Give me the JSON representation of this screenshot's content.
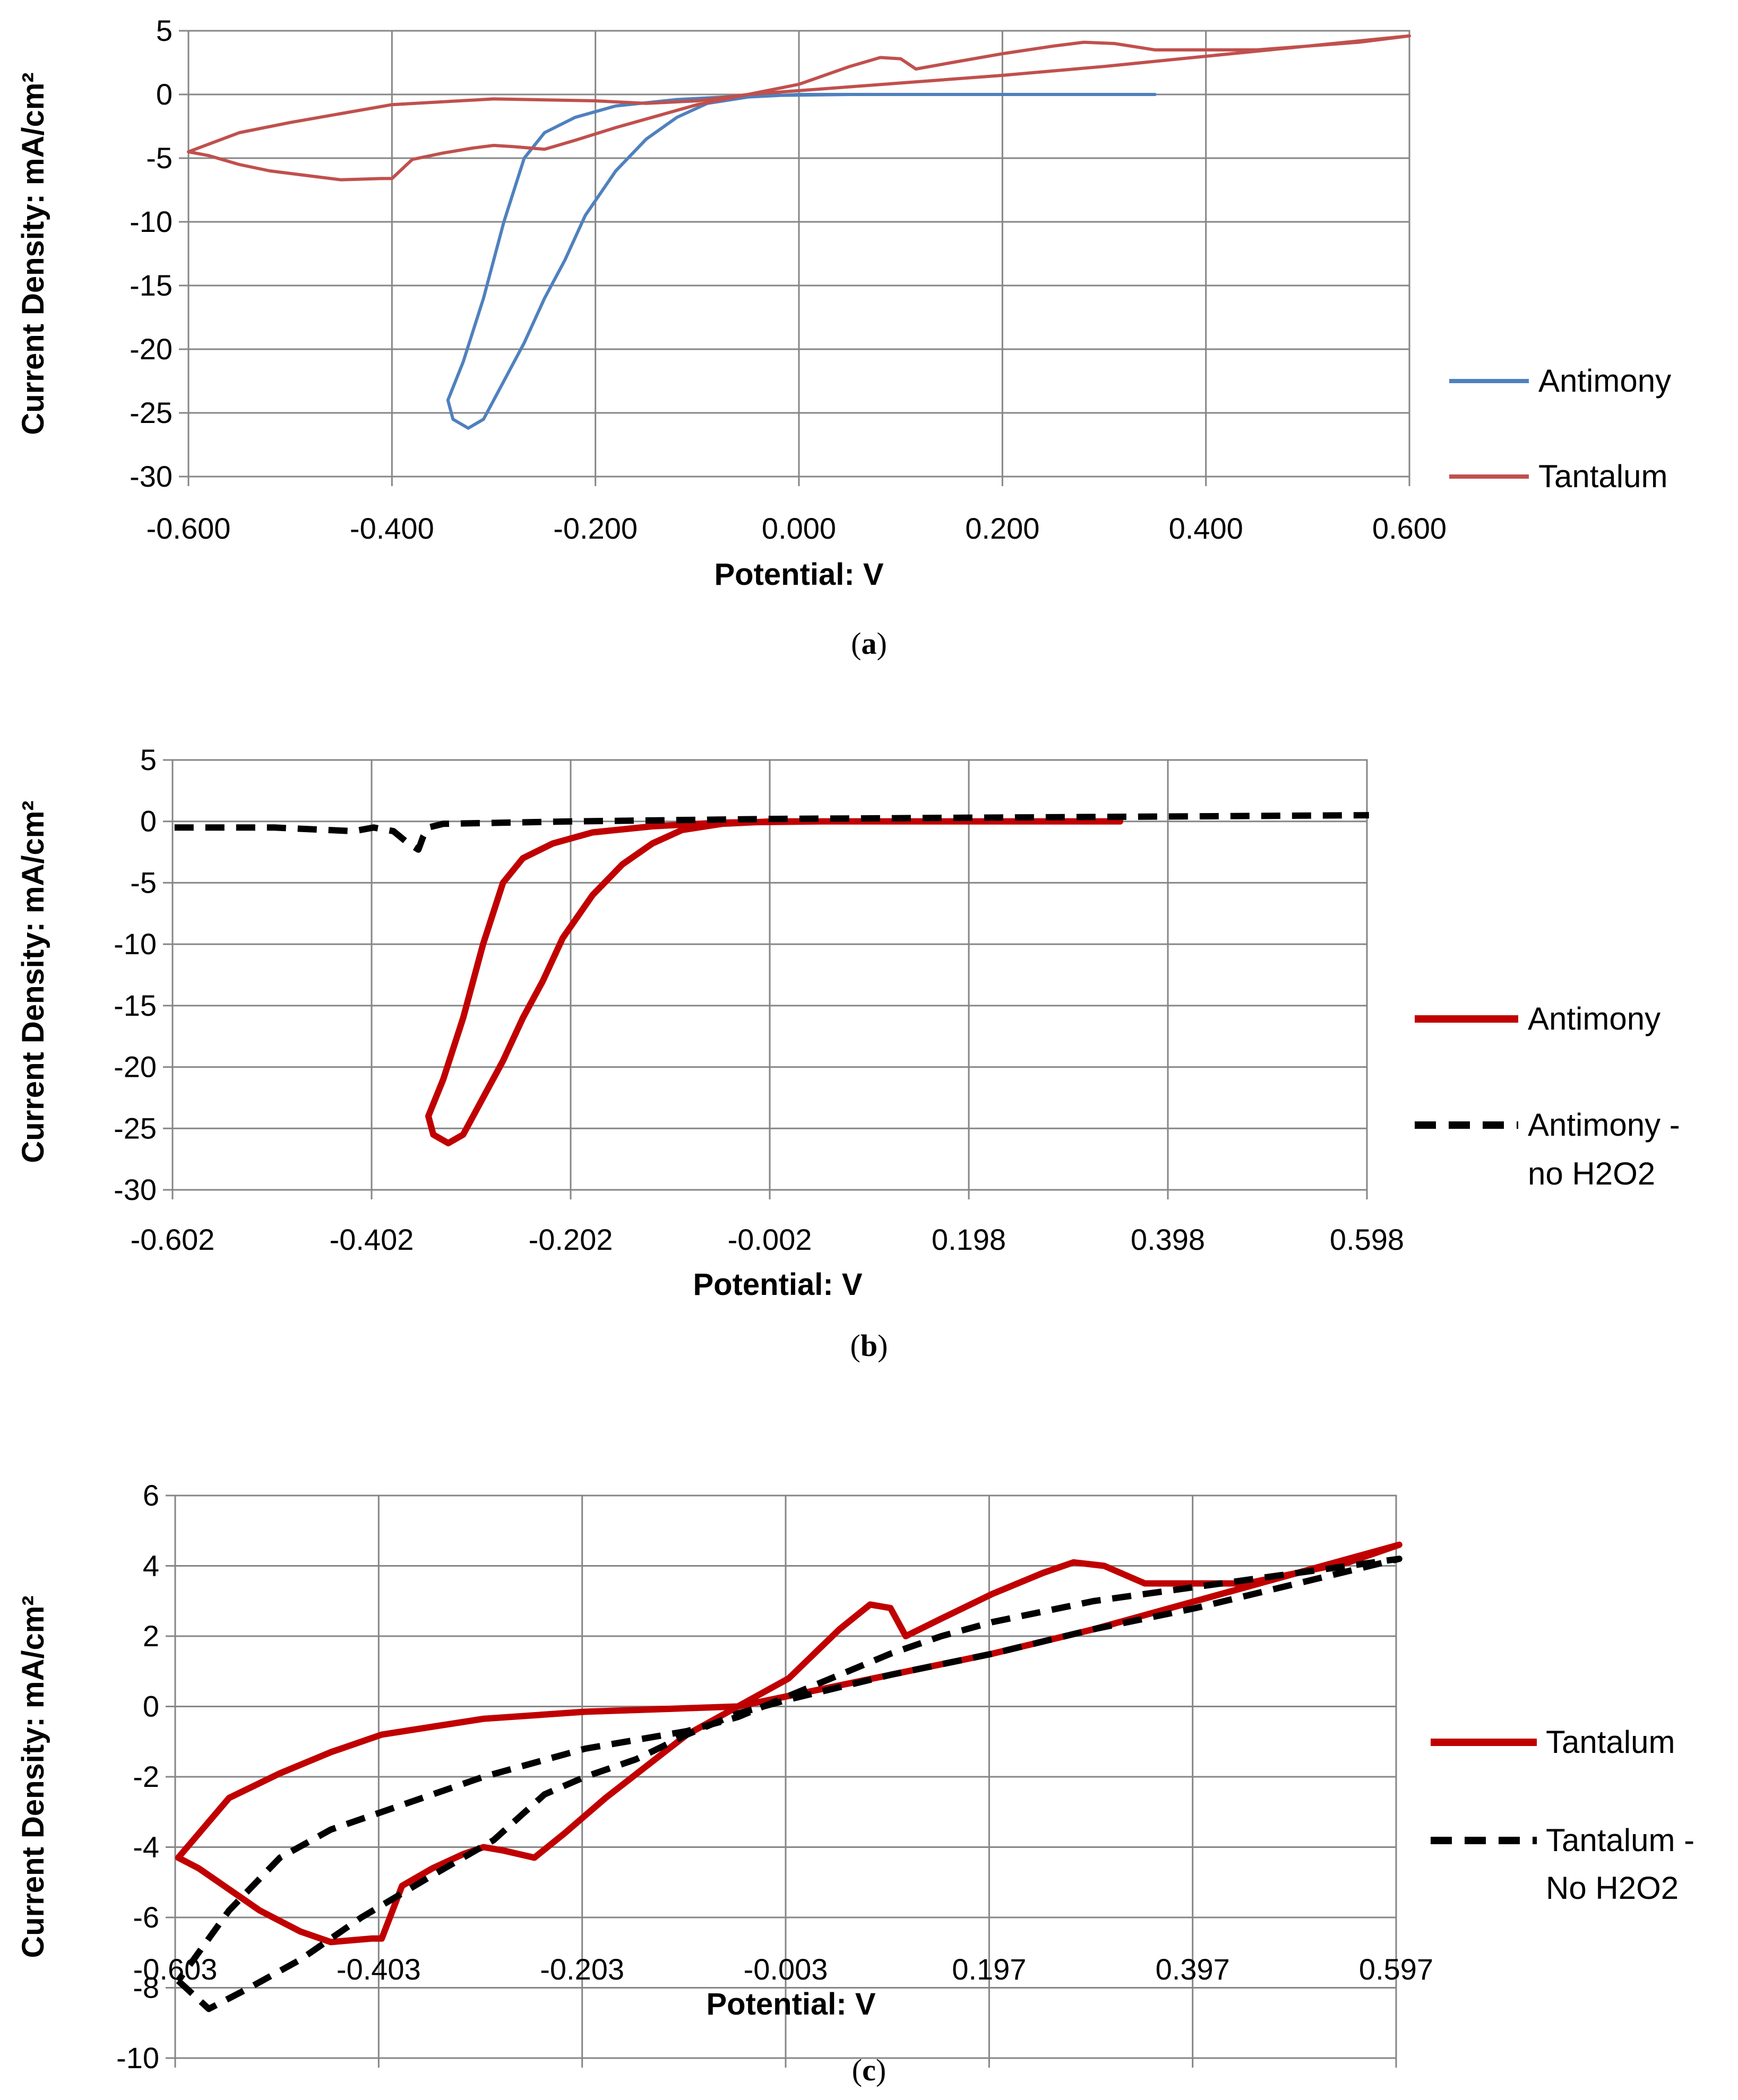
{
  "chart_data": [
    {
      "panel": "a",
      "type": "line",
      "caption_letter": "a",
      "xlabel": "Potential: V",
      "ylabel": "Current Density: mA/cm²",
      "xlim": [
        -0.6,
        0.6
      ],
      "ylim": [
        -30,
        5
      ],
      "x_ticks": [
        "-0.600",
        "-0.400",
        "-0.200",
        "0.000",
        "0.200",
        "0.400",
        "0.600"
      ],
      "y_ticks": [
        "5",
        "0",
        "-5",
        "-10",
        "-15",
        "-20",
        "-25",
        "-30"
      ],
      "grid": true,
      "legend_position": "right",
      "series": [
        {
          "name": "Antimony",
          "color": "#4f81bd",
          "style": "solid",
          "points": [
            [
              0.35,
              0
            ],
            [
              0.2,
              0
            ],
            [
              0.05,
              0
            ],
            [
              -0.05,
              -0.1
            ],
            [
              -0.12,
              -0.4
            ],
            [
              -0.18,
              -0.9
            ],
            [
              -0.22,
              -1.8
            ],
            [
              -0.25,
              -3
            ],
            [
              -0.27,
              -5
            ],
            [
              -0.29,
              -10
            ],
            [
              -0.31,
              -16
            ],
            [
              -0.33,
              -21
            ],
            [
              -0.345,
              -24
            ],
            [
              -0.34,
              -25.5
            ],
            [
              -0.325,
              -26.2
            ],
            [
              -0.31,
              -25.5
            ],
            [
              -0.29,
              -22.5
            ],
            [
              -0.27,
              -19.5
            ],
            [
              -0.25,
              -16
            ],
            [
              -0.23,
              -13
            ],
            [
              -0.21,
              -9.5
            ],
            [
              -0.18,
              -6
            ],
            [
              -0.15,
              -3.5
            ],
            [
              -0.12,
              -1.8
            ],
            [
              -0.09,
              -0.7
            ],
            [
              -0.05,
              -0.2
            ],
            [
              0,
              0
            ],
            [
              0.1,
              0
            ],
            [
              0.35,
              0
            ]
          ]
        },
        {
          "name": "Tantalum",
          "color": "#c0504d",
          "style": "solid",
          "points": [
            [
              -0.6,
              -4.5
            ],
            [
              -0.58,
              -4.8
            ],
            [
              -0.55,
              -5.5
            ],
            [
              -0.52,
              -6
            ],
            [
              -0.48,
              -6.4
            ],
            [
              -0.45,
              -6.7
            ],
            [
              -0.41,
              -6.6
            ],
            [
              -0.4,
              -6.6
            ],
            [
              -0.38,
              -5.1
            ],
            [
              -0.35,
              -4.6
            ],
            [
              -0.32,
              -4.2
            ],
            [
              -0.3,
              -4
            ],
            [
              -0.28,
              -4.1
            ],
            [
              -0.25,
              -4.3
            ],
            [
              -0.22,
              -3.6
            ],
            [
              -0.18,
              -2.6
            ],
            [
              -0.14,
              -1.7
            ],
            [
              -0.1,
              -0.8
            ],
            [
              -0.05,
              0
            ],
            [
              0,
              0.8
            ],
            [
              0.05,
              2.2
            ],
            [
              0.08,
              2.9
            ],
            [
              0.1,
              2.8
            ],
            [
              0.115,
              2
            ],
            [
              0.15,
              2.5
            ],
            [
              0.2,
              3.2
            ],
            [
              0.25,
              3.8
            ],
            [
              0.28,
              4.1
            ],
            [
              0.31,
              4
            ],
            [
              0.35,
              3.5
            ],
            [
              0.45,
              3.5
            ],
            [
              0.55,
              4.1
            ],
            [
              0.6,
              4.6
            ],
            [
              0.5,
              3.8
            ],
            [
              0.4,
              3
            ],
            [
              0.3,
              2.2
            ],
            [
              0.2,
              1.5
            ],
            [
              0.1,
              0.9
            ],
            [
              0,
              0.3
            ],
            [
              -0.05,
              0
            ],
            [
              -0.1,
              -0.5
            ],
            [
              -0.15,
              -0.7
            ],
            [
              -0.2,
              -0.5
            ],
            [
              -0.3,
              -0.35
            ],
            [
              -0.4,
              -0.8
            ],
            [
              -0.45,
              -1.5
            ],
            [
              -0.5,
              -2.2
            ],
            [
              -0.55,
              -3
            ],
            [
              -0.6,
              -4.5
            ]
          ]
        }
      ]
    },
    {
      "panel": "b",
      "type": "line",
      "caption_letter": "b",
      "xlabel": "Potential: V",
      "ylabel": "Current Density: mA/cm²",
      "xlim": [
        -0.602,
        0.598
      ],
      "ylim": [
        -30,
        5
      ],
      "x_ticks": [
        "-0.602",
        "-0.402",
        "-0.202",
        "-0.002",
        "0.198",
        "0.398",
        "0.598"
      ],
      "y_ticks": [
        "5",
        "0",
        "-5",
        "-10",
        "-15",
        "-20",
        "-25",
        "-30"
      ],
      "grid": true,
      "legend_position": "right",
      "series": [
        {
          "name": "Antimony",
          "color": "#c00000",
          "style": "solid",
          "points": [
            [
              0.35,
              0
            ],
            [
              0.2,
              0
            ],
            [
              0.05,
              0
            ],
            [
              -0.05,
              -0.1
            ],
            [
              -0.12,
              -0.4
            ],
            [
              -0.18,
              -0.9
            ],
            [
              -0.22,
              -1.8
            ],
            [
              -0.25,
              -3
            ],
            [
              -0.27,
              -5
            ],
            [
              -0.29,
              -10
            ],
            [
              -0.31,
              -16
            ],
            [
              -0.33,
              -21
            ],
            [
              -0.345,
              -24
            ],
            [
              -0.34,
              -25.5
            ],
            [
              -0.325,
              -26.2
            ],
            [
              -0.31,
              -25.5
            ],
            [
              -0.29,
              -22.5
            ],
            [
              -0.27,
              -19.5
            ],
            [
              -0.25,
              -16
            ],
            [
              -0.23,
              -13
            ],
            [
              -0.21,
              -9.5
            ],
            [
              -0.18,
              -6
            ],
            [
              -0.15,
              -3.5
            ],
            [
              -0.12,
              -1.8
            ],
            [
              -0.09,
              -0.7
            ],
            [
              -0.05,
              -0.2
            ],
            [
              0,
              0
            ],
            [
              0.1,
              0
            ],
            [
              0.35,
              0
            ]
          ]
        },
        {
          "name": "Antimony - no H2O2",
          "legend_lines": [
            "Antimony -",
            "no H2O2"
          ],
          "color": "#000000",
          "style": "dashed",
          "points": [
            [
              -0.6,
              -0.5
            ],
            [
              -0.5,
              -0.5
            ],
            [
              -0.42,
              -0.8
            ],
            [
              -0.4,
              -0.5
            ],
            [
              -0.38,
              -0.8
            ],
            [
              -0.365,
              -1.8
            ],
            [
              -0.355,
              -2.3
            ],
            [
              -0.35,
              -1.2
            ],
            [
              -0.345,
              -0.5
            ],
            [
              -0.33,
              -0.2
            ],
            [
              -0.2,
              0
            ],
            [
              -0.1,
              0.1
            ],
            [
              0,
              0.2
            ],
            [
              0.2,
              0.3
            ],
            [
              0.4,
              0.4
            ],
            [
              0.6,
              0.5
            ]
          ]
        }
      ]
    },
    {
      "panel": "c",
      "type": "line",
      "caption_letter": "c",
      "xlabel": "Potential: V",
      "ylabel": "Current Density: mA/cm²",
      "xlim": [
        -0.603,
        0.597
      ],
      "ylim": [
        -10,
        6
      ],
      "x_ticks": [
        "-0.603",
        "-0.403",
        "-0.203",
        "-0.003",
        "0.197",
        "0.397",
        "0.597"
      ],
      "y_ticks": [
        "6",
        "4",
        "2",
        "0",
        "-2",
        "-4",
        "-6",
        "-8",
        "-10"
      ],
      "grid": true,
      "legend_position": "right",
      "series": [
        {
          "name": "Tantalum",
          "color": "#c00000",
          "style": "solid",
          "points": [
            [
              -0.6,
              -4.3
            ],
            [
              -0.58,
              -4.6
            ],
            [
              -0.55,
              -5.2
            ],
            [
              -0.52,
              -5.8
            ],
            [
              -0.48,
              -6.4
            ],
            [
              -0.45,
              -6.7
            ],
            [
              -0.41,
              -6.6
            ],
            [
              -0.4,
              -6.6
            ],
            [
              -0.38,
              -5.1
            ],
            [
              -0.35,
              -4.6
            ],
            [
              -0.32,
              -4.2
            ],
            [
              -0.3,
              -4
            ],
            [
              -0.28,
              -4.1
            ],
            [
              -0.25,
              -4.3
            ],
            [
              -0.22,
              -3.6
            ],
            [
              -0.18,
              -2.6
            ],
            [
              -0.14,
              -1.7
            ],
            [
              -0.1,
              -0.8
            ],
            [
              -0.05,
              0
            ],
            [
              0,
              0.8
            ],
            [
              0.05,
              2.2
            ],
            [
              0.08,
              2.9
            ],
            [
              0.1,
              2.8
            ],
            [
              0.115,
              2
            ],
            [
              0.15,
              2.5
            ],
            [
              0.2,
              3.2
            ],
            [
              0.25,
              3.8
            ],
            [
              0.28,
              4.1
            ],
            [
              0.31,
              4
            ],
            [
              0.35,
              3.5
            ],
            [
              0.45,
              3.5
            ],
            [
              0.55,
              4.1
            ],
            [
              0.6,
              4.6
            ],
            [
              0.5,
              3.8
            ],
            [
              0.4,
              3
            ],
            [
              0.3,
              2.2
            ],
            [
              0.2,
              1.5
            ],
            [
              0.1,
              0.9
            ],
            [
              0,
              0.3
            ],
            [
              -0.05,
              0
            ],
            [
              -0.1,
              -0.05
            ],
            [
              -0.15,
              -0.1
            ],
            [
              -0.2,
              -0.15
            ],
            [
              -0.3,
              -0.35
            ],
            [
              -0.4,
              -0.8
            ],
            [
              -0.45,
              -1.3
            ],
            [
              -0.5,
              -1.9
            ],
            [
              -0.55,
              -2.6
            ],
            [
              -0.6,
              -4.3
            ]
          ]
        },
        {
          "name": "Tantalum - No H2O2",
          "legend_lines": [
            "Tantalum -",
            "No H2O2"
          ],
          "color": "#000000",
          "style": "dashed",
          "points": [
            [
              -0.6,
              -7.8
            ],
            [
              -0.57,
              -8.6
            ],
            [
              -0.53,
              -8
            ],
            [
              -0.48,
              -7.2
            ],
            [
              -0.42,
              -6
            ],
            [
              -0.35,
              -4.8
            ],
            [
              -0.29,
              -3.8
            ],
            [
              -0.24,
              -2.5
            ],
            [
              -0.2,
              -2
            ],
            [
              -0.15,
              -1.5
            ],
            [
              -0.1,
              -0.8
            ],
            [
              -0.05,
              -0.2
            ],
            [
              0,
              0.2
            ],
            [
              0.1,
              0.9
            ],
            [
              0.2,
              1.5
            ],
            [
              0.3,
              2.2
            ],
            [
              0.4,
              2.8
            ],
            [
              0.5,
              3.5
            ],
            [
              0.6,
              4.2
            ],
            [
              0.5,
              3.8
            ],
            [
              0.4,
              3.4
            ],
            [
              0.3,
              3
            ],
            [
              0.2,
              2.4
            ],
            [
              0.15,
              2
            ],
            [
              0.1,
              1.5
            ],
            [
              0.05,
              0.9
            ],
            [
              0,
              0.3
            ],
            [
              -0.05,
              -0.3
            ],
            [
              -0.1,
              -0.7
            ],
            [
              -0.2,
              -1.2
            ],
            [
              -0.3,
              -2
            ],
            [
              -0.4,
              -3
            ],
            [
              -0.45,
              -3.5
            ],
            [
              -0.5,
              -4.3
            ],
            [
              -0.55,
              -5.8
            ],
            [
              -0.6,
              -7.8
            ]
          ]
        }
      ]
    }
  ]
}
